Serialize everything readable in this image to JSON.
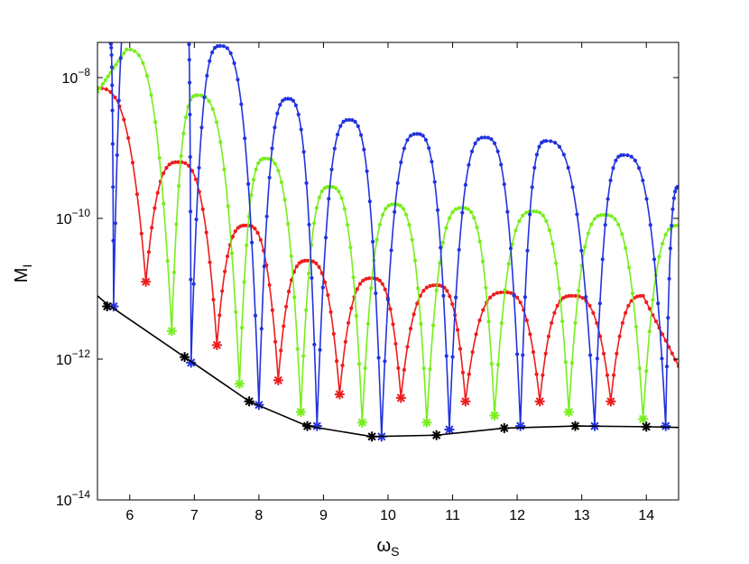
{
  "chart_data": {
    "type": "line",
    "title": "",
    "xlabel": "ω",
    "xlabel_sub": "S",
    "ylabel": "M",
    "ylabel_sub": "I",
    "xlim": [
      5.5,
      14.5
    ],
    "ylim_log10": [
      -14,
      -7.5
    ],
    "y_scale": "log",
    "grid": false,
    "x_ticks": [
      6,
      7,
      8,
      9,
      10,
      11,
      12,
      13,
      14
    ],
    "y_ticks": [
      {
        "exp": -14,
        "base": "10",
        "sup": "−14"
      },
      {
        "exp": -12,
        "base": "10",
        "sup": "−12"
      },
      {
        "exp": -10,
        "base": "10",
        "sup": "−10"
      },
      {
        "exp": -8,
        "base": "10",
        "sup": "−8"
      }
    ],
    "colors": {
      "red": "#ee1c1c",
      "green": "#77ee1c",
      "blue": "#2233dd",
      "black": "#000000"
    },
    "series": [
      {
        "color": "red",
        "peaks": [
          {
            "x": 5.5,
            "logy": -8.15
          },
          {
            "x": 6.75,
            "logy": -9.2
          },
          {
            "x": 7.8,
            "logy": -10.1
          },
          {
            "x": 8.75,
            "logy": -10.6
          },
          {
            "x": 9.75,
            "logy": -10.85
          },
          {
            "x": 10.75,
            "logy": -10.95
          },
          {
            "x": 11.8,
            "logy": -11.05
          },
          {
            "x": 12.85,
            "logy": -11.1
          },
          {
            "x": 13.95,
            "logy": -11.1
          },
          {
            "x": 14.5,
            "logy": -12.1
          }
        ],
        "minima": [
          {
            "x": 6.25,
            "logy": -10.9
          },
          {
            "x": 7.35,
            "logy": -11.8
          },
          {
            "x": 8.3,
            "logy": -12.3
          },
          {
            "x": 9.25,
            "logy": -12.5
          },
          {
            "x": 10.2,
            "logy": -12.55
          },
          {
            "x": 11.2,
            "logy": -12.6
          },
          {
            "x": 12.35,
            "logy": -12.6
          },
          {
            "x": 13.45,
            "logy": -12.6
          }
        ]
      },
      {
        "color": "green",
        "peaks": [
          {
            "x": 5.5,
            "logy": -8.2
          },
          {
            "x": 5.95,
            "logy": -7.6
          },
          {
            "x": 7.05,
            "logy": -8.25
          },
          {
            "x": 8.1,
            "logy": -9.15
          },
          {
            "x": 9.1,
            "logy": -9.55
          },
          {
            "x": 10.1,
            "logy": -9.8
          },
          {
            "x": 11.15,
            "logy": -9.85
          },
          {
            "x": 12.25,
            "logy": -9.9
          },
          {
            "x": 13.35,
            "logy": -9.95
          },
          {
            "x": 14.5,
            "logy": -10.1
          }
        ],
        "minima": [
          {
            "x": 6.65,
            "logy": -11.6
          },
          {
            "x": 7.7,
            "logy": -12.35
          },
          {
            "x": 8.65,
            "logy": -12.75
          },
          {
            "x": 9.6,
            "logy": -12.9
          },
          {
            "x": 10.6,
            "logy": -12.9
          },
          {
            "x": 11.65,
            "logy": -12.8
          },
          {
            "x": 12.8,
            "logy": -12.75
          },
          {
            "x": 13.95,
            "logy": -12.85
          }
        ]
      },
      {
        "color": "blue",
        "peaks": [
          {
            "x": 5.7,
            "logy": -7.5
          },
          {
            "x": 6.05,
            "logy": -6.5
          },
          {
            "x": 6.9,
            "logy": -7.3
          },
          {
            "x": 7.4,
            "logy": -7.55
          },
          {
            "x": 8.45,
            "logy": -8.3
          },
          {
            "x": 9.4,
            "logy": -8.6
          },
          {
            "x": 10.45,
            "logy": -8.8
          },
          {
            "x": 11.5,
            "logy": -8.85
          },
          {
            "x": 12.45,
            "logy": -8.9
          },
          {
            "x": 13.65,
            "logy": -9.1
          },
          {
            "x": 14.5,
            "logy": -9.55
          }
        ],
        "minima": [
          {
            "x": 5.75,
            "logy": -11.25
          },
          {
            "x": 6.95,
            "logy": -12.05
          },
          {
            "x": 8.0,
            "logy": -12.65
          },
          {
            "x": 8.9,
            "logy": -12.95
          },
          {
            "x": 9.9,
            "logy": -13.1
          },
          {
            "x": 10.95,
            "logy": -13.0
          },
          {
            "x": 12.05,
            "logy": -12.95
          },
          {
            "x": 13.2,
            "logy": -12.95
          },
          {
            "x": 14.3,
            "logy": -12.95
          }
        ]
      },
      {
        "color": "black",
        "line": [
          {
            "x": 5.5,
            "logy": -11.1
          },
          {
            "x": 5.65,
            "logy": -11.22
          },
          {
            "x": 5.75,
            "logy": -11.28
          },
          {
            "x": 6.85,
            "logy": -11.97
          },
          {
            "x": 7.85,
            "logy": -12.6
          },
          {
            "x": 8.75,
            "logy": -12.95
          },
          {
            "x": 9.75,
            "logy": -13.1
          },
          {
            "x": 10.75,
            "logy": -13.08
          },
          {
            "x": 11.8,
            "logy": -12.98
          },
          {
            "x": 12.9,
            "logy": -12.95
          },
          {
            "x": 14.0,
            "logy": -12.96
          },
          {
            "x": 14.5,
            "logy": -12.97
          }
        ],
        "stars": [
          {
            "x": 5.65,
            "logy": -11.25
          },
          {
            "x": 6.85,
            "logy": -11.97
          },
          {
            "x": 7.85,
            "logy": -12.6
          },
          {
            "x": 8.75,
            "logy": -12.95
          },
          {
            "x": 9.75,
            "logy": -13.1
          },
          {
            "x": 10.75,
            "logy": -13.08
          },
          {
            "x": 11.8,
            "logy": -12.98
          },
          {
            "x": 12.9,
            "logy": -12.95
          },
          {
            "x": 14.0,
            "logy": -12.96
          }
        ]
      }
    ]
  }
}
